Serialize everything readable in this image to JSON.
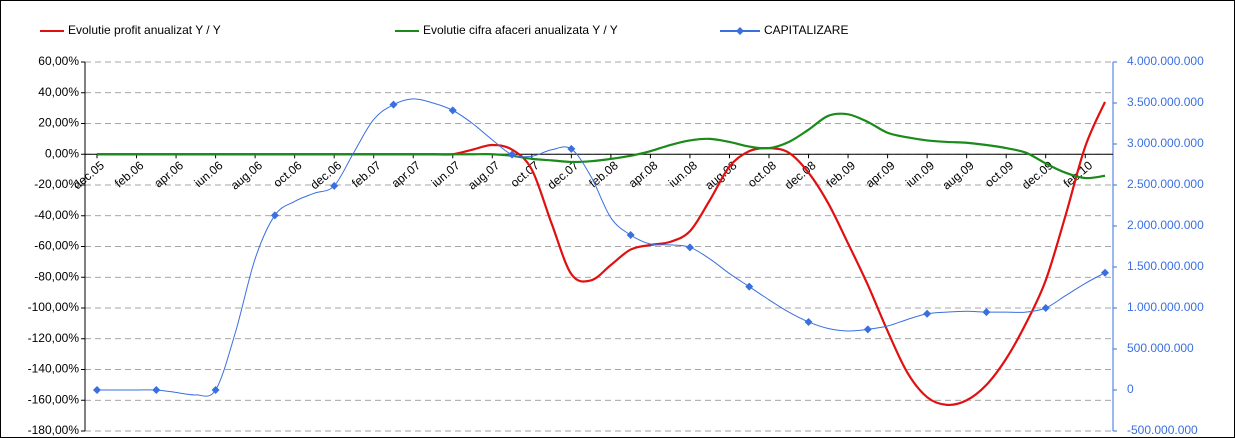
{
  "chart_data": {
    "type": "line",
    "categories": [
      "dec.05",
      null,
      "feb.06",
      null,
      "apr.06",
      null,
      "iun.06",
      null,
      "aug.06",
      null,
      "oct.06",
      null,
      "dec.06",
      null,
      "feb.07",
      null,
      "apr.07",
      null,
      "iun.07",
      null,
      "aug.07",
      null,
      "oct.07",
      null,
      "dec.07",
      null,
      "feb.08",
      null,
      "apr.08",
      null,
      "iun.08",
      null,
      "aug.08",
      null,
      "oct.08",
      null,
      "dec.08",
      null,
      "feb.09",
      null,
      "apr.09",
      null,
      "iun.09",
      null,
      "aug.09",
      null,
      "oct.09",
      null,
      "dec.09",
      null,
      "feb.10",
      null
    ],
    "series": [
      {
        "name": "Evolutie profit anualizat Y / Y",
        "color": "#e01010",
        "values": [
          0,
          0,
          0,
          0,
          0,
          0,
          0,
          0,
          0,
          0,
          0,
          0,
          0,
          0,
          0,
          0,
          0,
          0,
          0,
          3,
          6,
          3,
          -10,
          -45,
          -78,
          -82,
          -72,
          -62,
          -59,
          -57,
          -50,
          -30,
          -8,
          2,
          4,
          1,
          -12,
          -32,
          -58,
          -85,
          -115,
          -142,
          -158,
          -163,
          -160,
          -150,
          -133,
          -110,
          -82,
          -40,
          5,
          34
        ]
      },
      {
        "name": "Evolutie cifra afaceri anualizata Y / Y",
        "color": "#1a8a1a",
        "values": [
          0,
          0,
          0,
          0,
          0,
          0,
          0,
          0,
          0,
          0,
          0,
          0,
          0,
          0,
          0,
          0,
          0,
          0,
          0,
          0,
          0,
          -1,
          -3,
          -4,
          -5,
          -4.5,
          -3,
          -1,
          2,
          6,
          9,
          10,
          8,
          5,
          4,
          8,
          16,
          25,
          26,
          21,
          14,
          11,
          9,
          8,
          7.5,
          6,
          4,
          1,
          -6,
          -12,
          -15.5,
          -14
        ]
      },
      {
        "name": "CAPITALIZARE",
        "color": "#3a6fe0",
        "axis": "y2",
        "marker": "diamond",
        "marker_every": 3,
        "values": [
          0,
          0,
          0,
          0,
          -30000000,
          -60000000,
          0,
          700000000,
          1600000000,
          2130000000,
          2300000000,
          2400000000,
          2490000000,
          2900000000,
          3300000000,
          3480000000,
          3550000000,
          3500000000,
          3410000000,
          3250000000,
          3050000000,
          2870000000,
          2850000000,
          2930000000,
          2940000000,
          2600000000,
          2100000000,
          1890000000,
          1780000000,
          1770000000,
          1740000000,
          1600000000,
          1420000000,
          1260000000,
          1100000000,
          950000000,
          830000000,
          750000000,
          720000000,
          740000000,
          780000000,
          860000000,
          930000000,
          950000000,
          960000000,
          950000000,
          950000000,
          950000000,
          1000000000,
          1150000000,
          1300000000,
          1430000000
        ]
      }
    ],
    "ylim": [
      -180,
      60
    ],
    "yticks": [
      {
        "value": -180,
        "label": "-180,00%"
      },
      {
        "value": -160,
        "label": "-160,00%"
      },
      {
        "value": -140,
        "label": "-140,00%"
      },
      {
        "value": -120,
        "label": "-120,00%"
      },
      {
        "value": -100,
        "label": "-100,00%"
      },
      {
        "value": -80,
        "label": "-80,00%"
      },
      {
        "value": -60,
        "label": "-60,00%"
      },
      {
        "value": -40,
        "label": "-40,00%"
      },
      {
        "value": -20,
        "label": "-20,00%"
      },
      {
        "value": 0,
        "label": "0,00%"
      },
      {
        "value": 20,
        "label": "20,00%"
      },
      {
        "value": 40,
        "label": "40,00%"
      },
      {
        "value": 60,
        "label": "60,00%"
      }
    ],
    "y2lim": [
      -500000000,
      4000000000
    ],
    "y2ticks": [
      {
        "value": -500000000,
        "label": "-500.000.000"
      },
      {
        "value": 0,
        "label": "0"
      },
      {
        "value": 500000000,
        "label": "500.000.000"
      },
      {
        "value": 1000000000,
        "label": "1.000.000.000"
      },
      {
        "value": 1500000000,
        "label": "1.500.000.000"
      },
      {
        "value": 2000000000,
        "label": "2.000.000.000"
      },
      {
        "value": 2500000000,
        "label": "2.500.000.000"
      },
      {
        "value": 3000000000,
        "label": "3.000.000.000"
      },
      {
        "value": 3500000000,
        "label": "3.500.000.000"
      },
      {
        "value": 4000000000,
        "label": "4.000.000.000"
      }
    ],
    "grid": true,
    "legend": "top"
  }
}
